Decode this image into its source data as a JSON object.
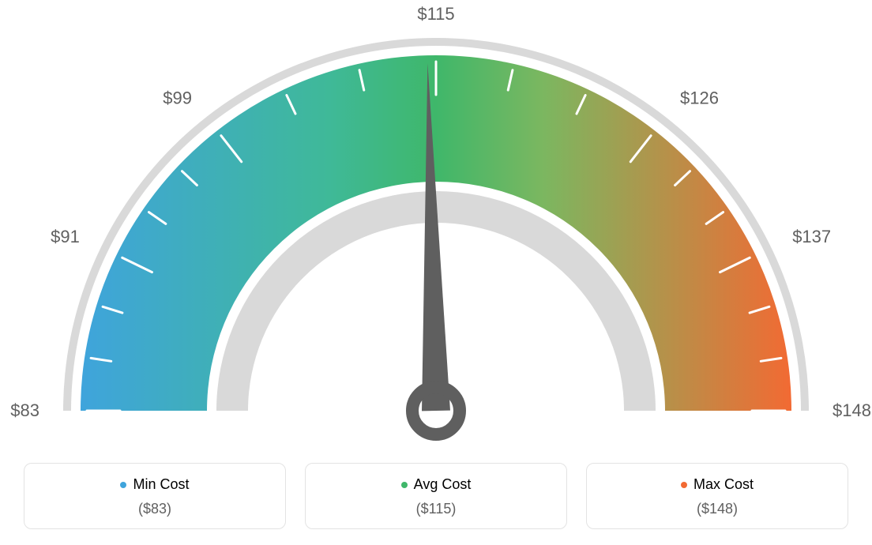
{
  "gauge": {
    "type": "gauge",
    "min_value": 83,
    "max_value": 148,
    "avg_value": 115,
    "needle_value": 115,
    "tick_labels": [
      "$83",
      "$91",
      "$99",
      "$115",
      "$126",
      "$137",
      "$148"
    ],
    "tick_label_angles_deg": [
      180,
      154,
      128,
      90,
      52,
      26,
      0
    ],
    "minor_tick_count_between": 2,
    "colors": {
      "min_color": "#3fa4dc",
      "avg_color": "#3fb76a",
      "max_color": "#f26a33",
      "outer_ring": "#d9d9d9",
      "inner_ring": "#d9d9d9",
      "tick_color": "#ffffff",
      "label_color": "#606060",
      "needle_color": "#5f5f5f",
      "background": "#ffffff"
    },
    "dimensions": {
      "outer_ring_outer_r": 472,
      "outer_ring_inner_r": 462,
      "arc_outer_r": 450,
      "arc_inner_r": 290,
      "inner_ring_outer_r": 278,
      "inner_ring_inner_r": 238,
      "major_tick_len": 42,
      "minor_tick_len": 26,
      "tick_stroke_width": 3
    }
  },
  "legend": {
    "min": {
      "label": "Min Cost",
      "value": "($83)",
      "color": "#3fa4dc"
    },
    "avg": {
      "label": "Avg Cost",
      "value": "($115)",
      "color": "#3fb76a"
    },
    "max": {
      "label": "Max Cost",
      "value": "($148)",
      "color": "#f26a33"
    }
  }
}
